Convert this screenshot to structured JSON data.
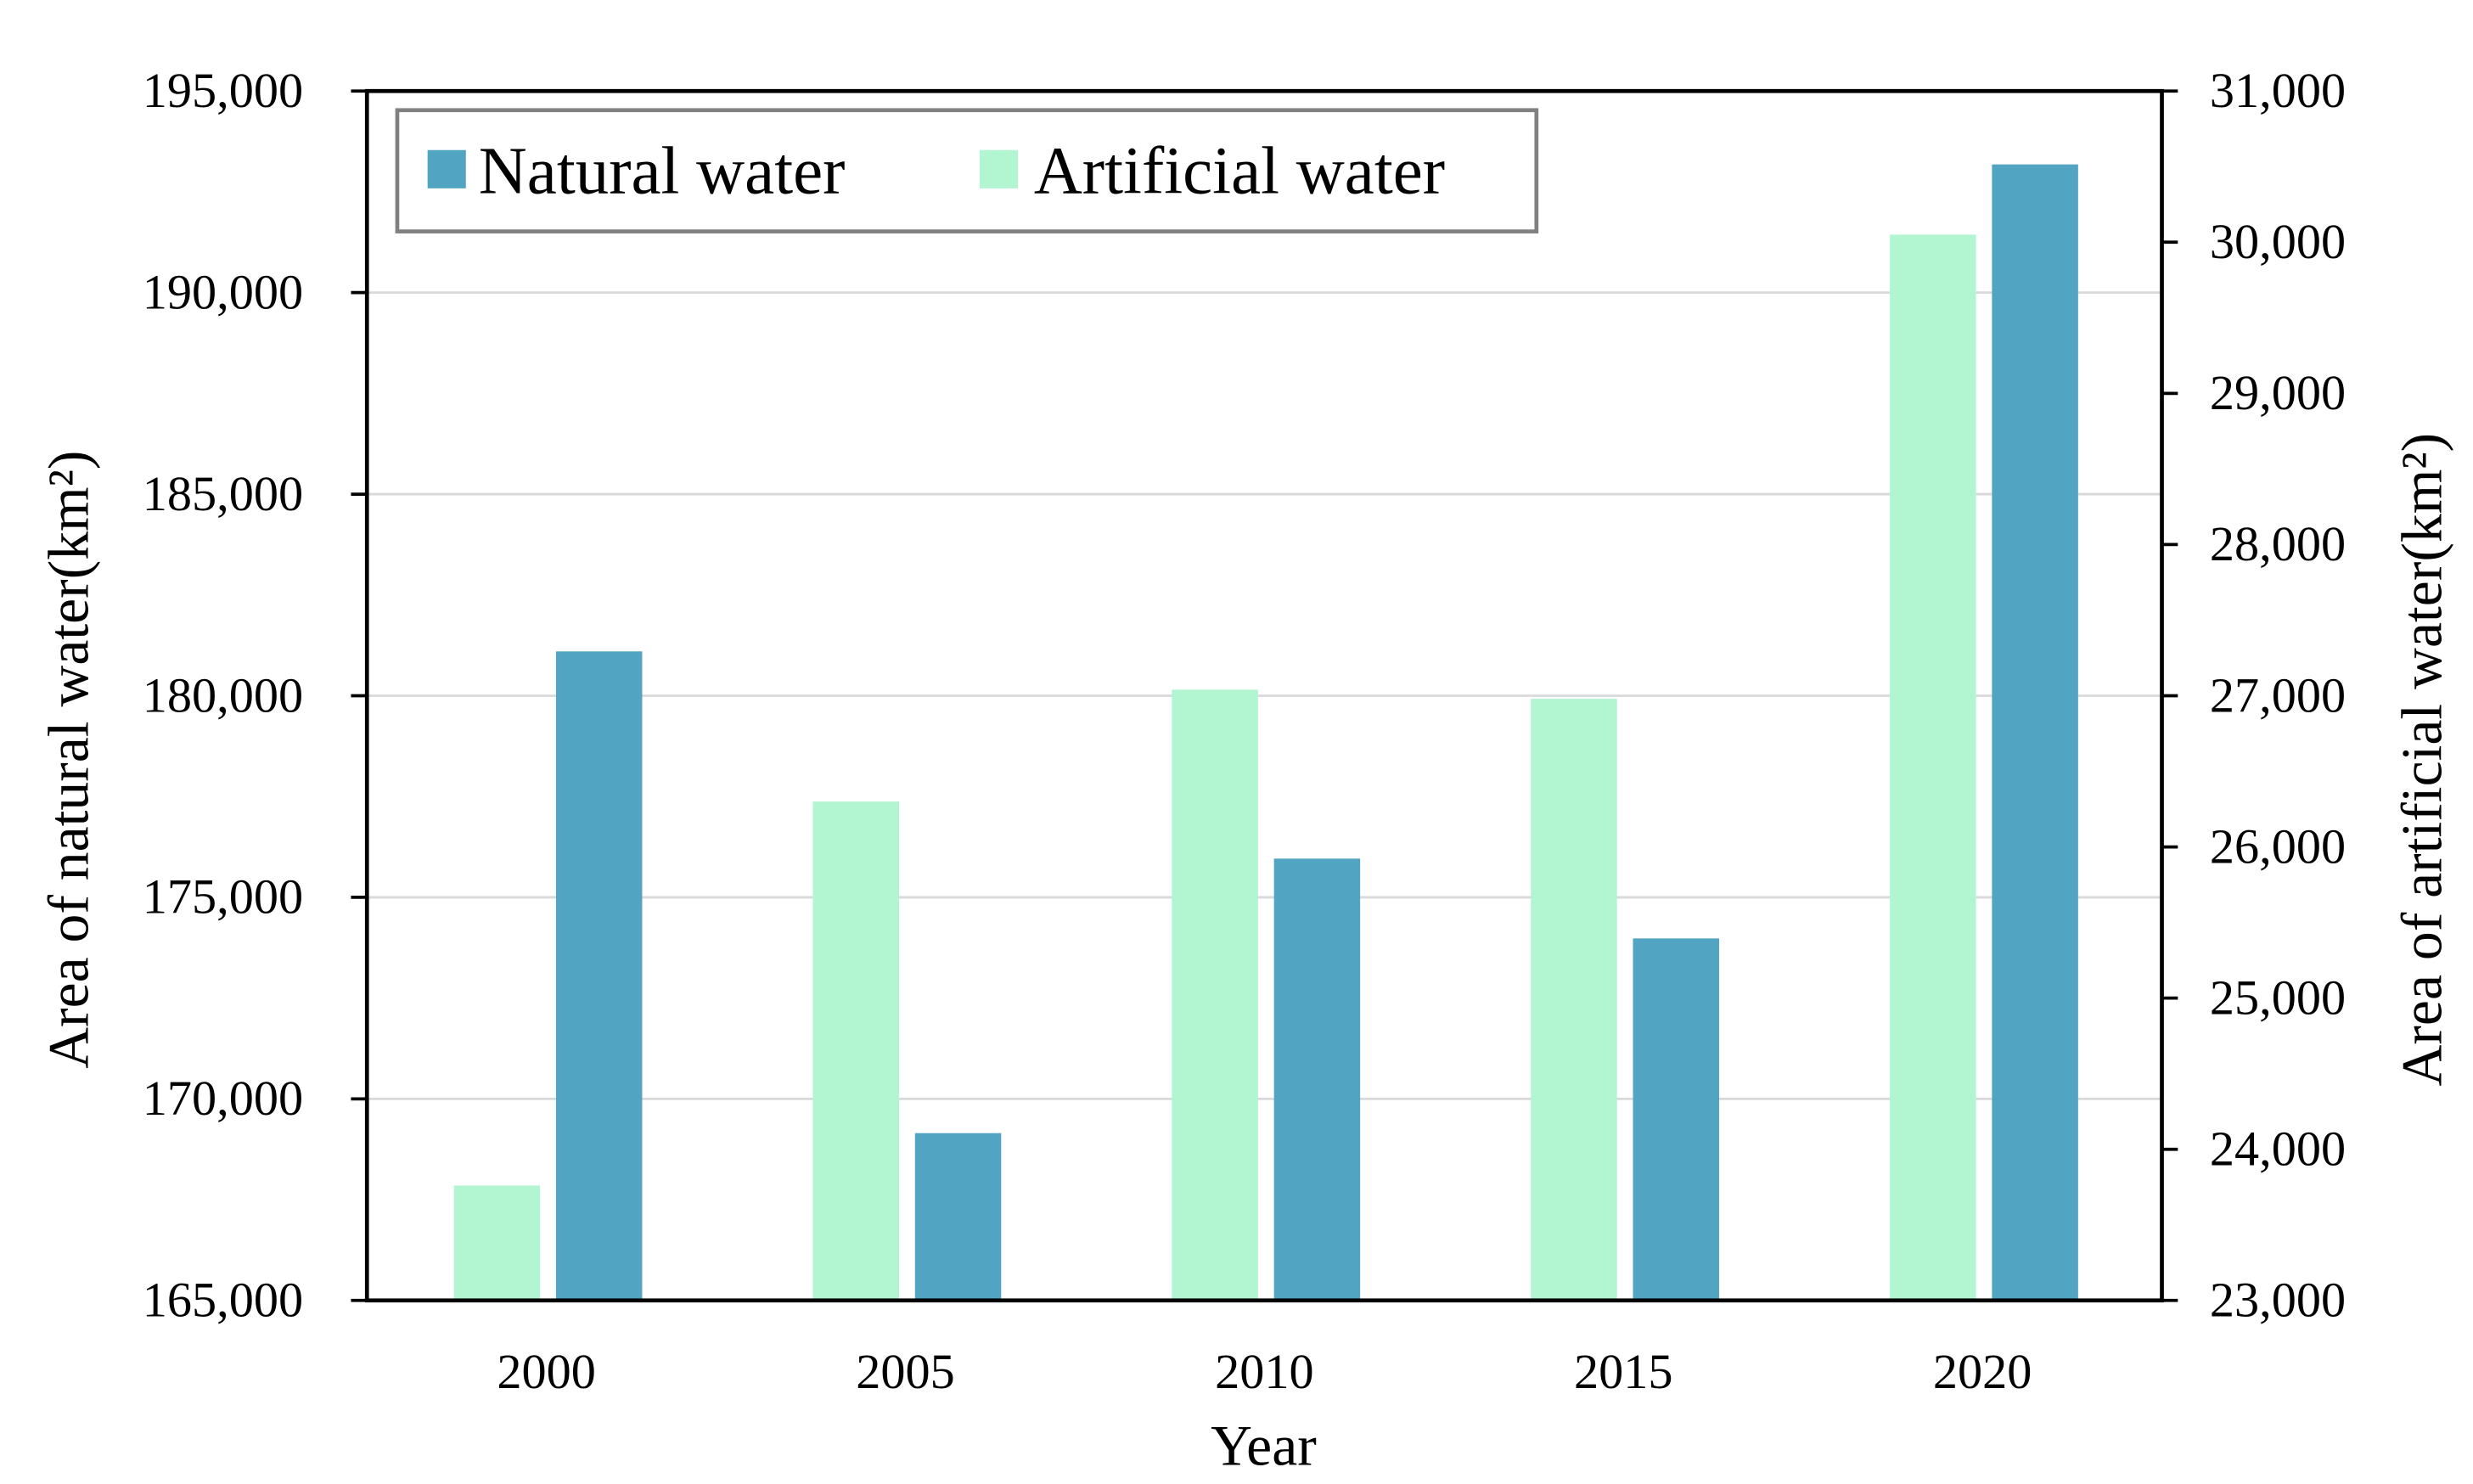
{
  "chart_data": {
    "type": "bar",
    "categories": [
      "2000",
      "2005",
      "2010",
      "2015",
      "2020"
    ],
    "xlabel": "Year",
    "ylabel": "Area of natural water(km²)",
    "ylabel_right": "Area of artificial  water(km²)",
    "ylim": [
      165000,
      195000
    ],
    "ylim_right": [
      23000,
      31000
    ],
    "yticks": [
      "165,000",
      "170,000",
      "175,000",
      "180,000",
      "185,000",
      "190,000",
      "195,000"
    ],
    "yticks_right": [
      "23,000",
      "24,000",
      "25,000",
      "26,000",
      "27,000",
      "28,000",
      "29,000",
      "30,000",
      "31,000"
    ],
    "grid": true,
    "legend_position": "top-left",
    "series": [
      {
        "name": "Natural water",
        "axis": "left",
        "color": "#52a4c3",
        "values": [
          181100,
          169150,
          175960,
          173980,
          193180
        ]
      },
      {
        "name": "Artificial water",
        "axis": "right",
        "color": "#b2f5d1",
        "values": [
          23760,
          26300,
          27040,
          26980,
          30050
        ]
      }
    ]
  }
}
